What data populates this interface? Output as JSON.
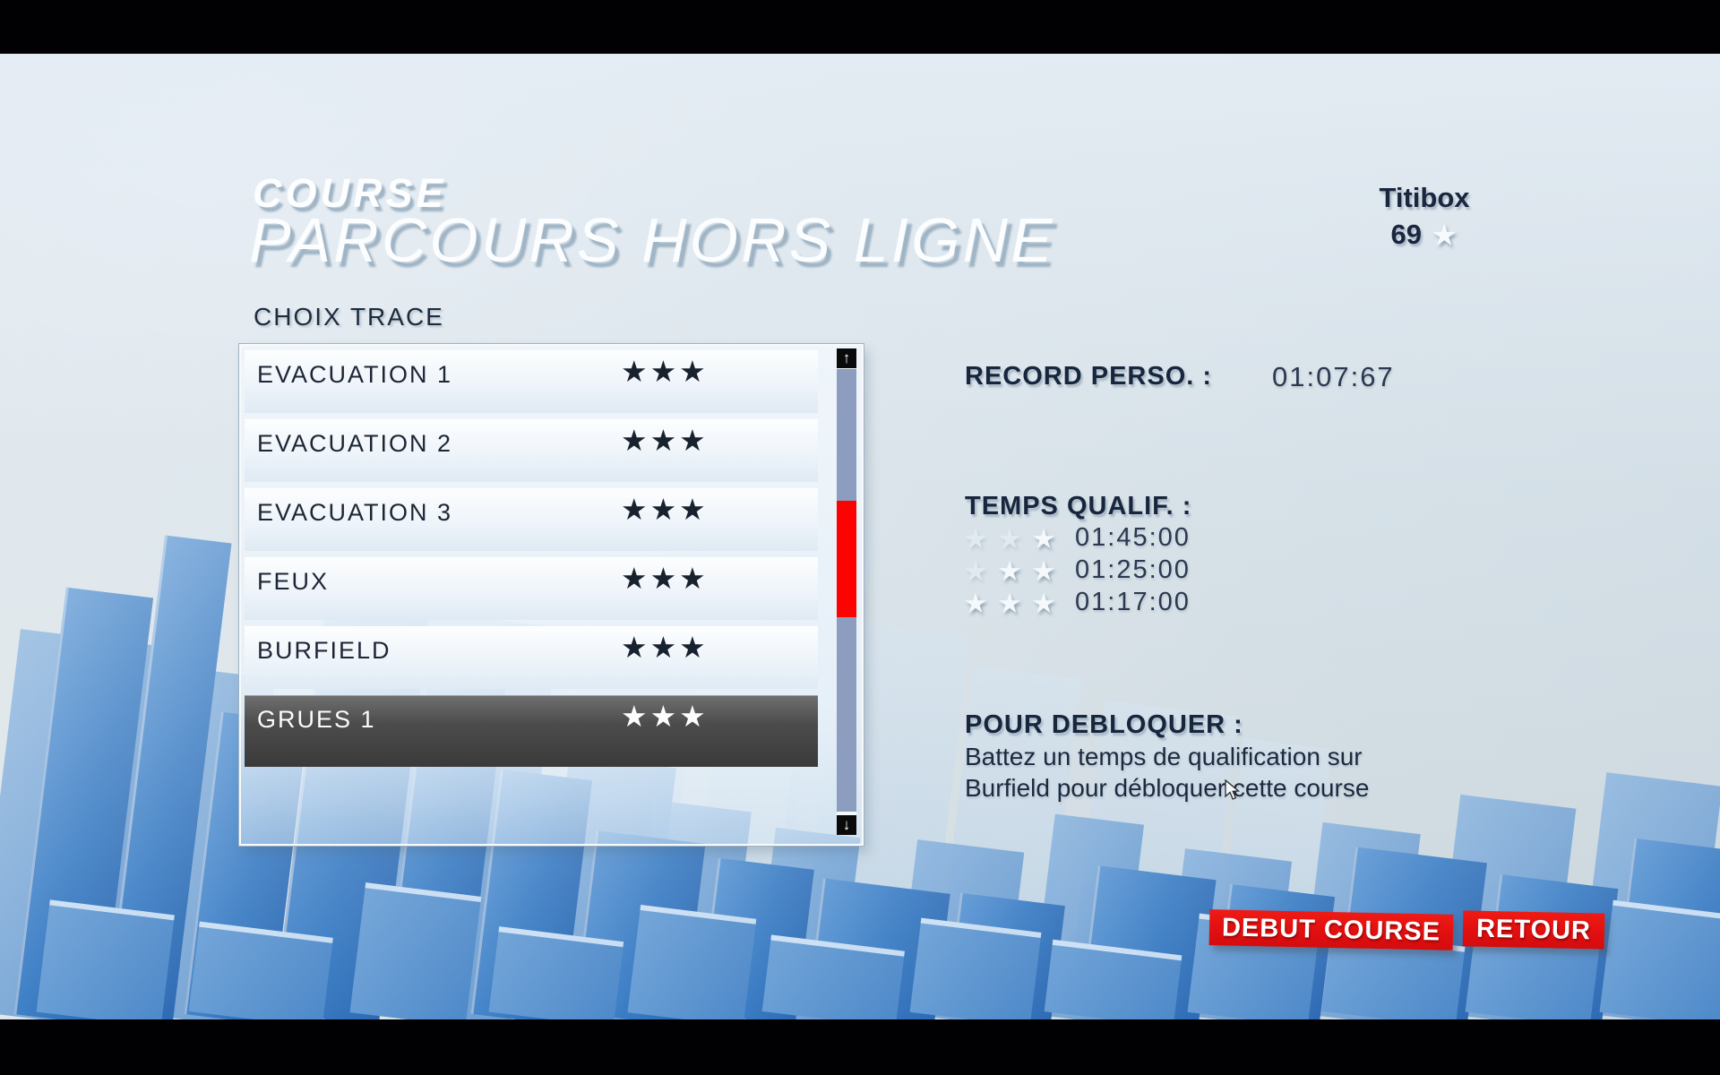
{
  "header": {
    "category": "COURSE",
    "title": "PARCOURS HORS LIGNE"
  },
  "player": {
    "name": "Titibox",
    "star_count": "69",
    "star_glyph": "★"
  },
  "track_list": {
    "label": "CHOIX TRACE",
    "items": [
      {
        "name": "EVACUATION 1",
        "stars": "★★★",
        "selected": false
      },
      {
        "name": "EVACUATION 2",
        "stars": "★★★",
        "selected": false
      },
      {
        "name": "EVACUATION 3",
        "stars": "★★★",
        "selected": false
      },
      {
        "name": "FEUX",
        "stars": "★★★",
        "selected": false
      },
      {
        "name": "BURFIELD",
        "stars": "★★★",
        "selected": false
      },
      {
        "name": "GRUES 1",
        "stars": "★★★",
        "selected": true
      }
    ],
    "scrollbar": {
      "up_icon": "↑",
      "down_icon": "↓"
    }
  },
  "record": {
    "label": "RECORD PERSO. :",
    "value": "01:07:67"
  },
  "qualification": {
    "label": "TEMPS QUALIF. :",
    "star_glyph": "★",
    "rows": [
      {
        "time": "01:45:00",
        "stars": [
          "faint",
          "faint",
          "bright"
        ]
      },
      {
        "time": "01:25:00",
        "stars": [
          "faint",
          "bright",
          "bright"
        ]
      },
      {
        "time": "01:17:00",
        "stars": [
          "bright",
          "bright",
          "bright"
        ]
      }
    ]
  },
  "unlock": {
    "label": "POUR DEBLOQUER :",
    "lines": [
      "Battez un temps de qualification sur",
      "Burfield pour débloquer cette course"
    ]
  },
  "actions": {
    "start": "DEBUT COURSE",
    "back": "RETOUR"
  },
  "colors": {
    "accent_red": "#e20f10",
    "navy_text": "#1c2a40",
    "selected_row_gray": "#4c4c4c",
    "scroll_thumb": "#8d9dbf",
    "scroll_indicator": "#fb0300",
    "city_blue": "#3a7cc4",
    "background": "#d5dee3"
  }
}
